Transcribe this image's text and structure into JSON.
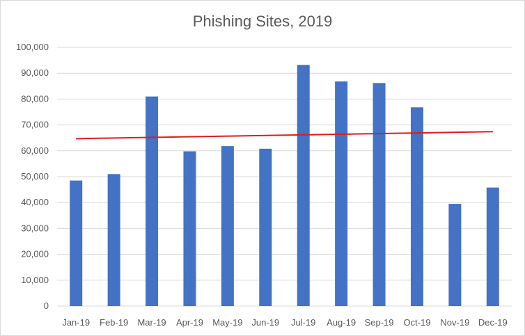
{
  "chart_data": {
    "type": "bar",
    "title": "Phishing Sites, 2019",
    "xlabel": "",
    "ylabel": "",
    "categories": [
      "Jan-19",
      "Feb-19",
      "Mar-19",
      "Apr-19",
      "May-19",
      "Jun-19",
      "Jul-19",
      "Aug-19",
      "Sep-19",
      "Oct-19",
      "Nov-19",
      "Dec-19"
    ],
    "values": [
      48500,
      51000,
      81000,
      59800,
      61800,
      60800,
      93200,
      86800,
      86200,
      76800,
      39500,
      45800
    ],
    "ylim": [
      0,
      100000
    ],
    "yticks": [
      0,
      10000,
      20000,
      30000,
      40000,
      50000,
      60000,
      70000,
      80000,
      90000,
      100000
    ],
    "ytick_labels": [
      "0",
      "10,000",
      "20,000",
      "30,000",
      "40,000",
      "50,000",
      "60,000",
      "70,000",
      "80,000",
      "90,000",
      "100,000"
    ],
    "trendline": {
      "type": "linear",
      "start": 64700,
      "end": 67400
    },
    "grid": true,
    "legend": "none",
    "colors": {
      "bar": "#4472C4",
      "trendline": "#E31A1C",
      "grid": "#D9D9D9",
      "text": "#595959"
    }
  }
}
